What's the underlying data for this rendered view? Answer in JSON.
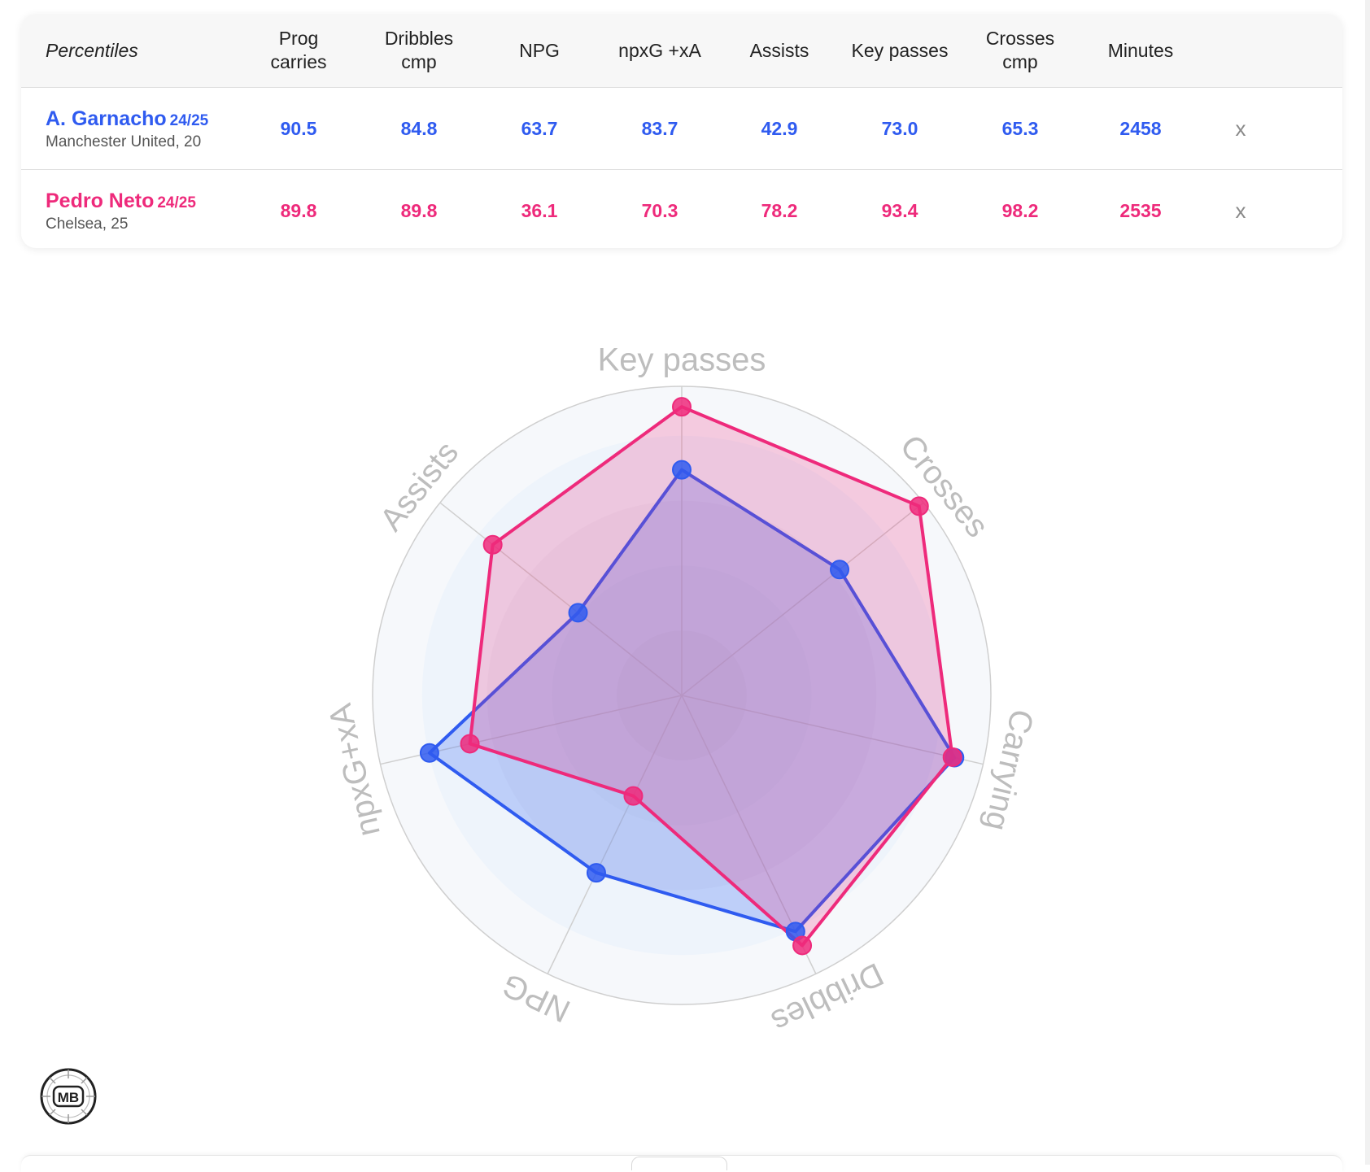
{
  "table": {
    "header_label": "Percentiles",
    "columns": [
      "Prog\ncarries",
      "Dribbles\ncmp",
      "NPG",
      "npxG +xA",
      "Assists",
      "Key passes",
      "Crosses\ncmp",
      "Minutes"
    ],
    "remove_label": "x",
    "rows": [
      {
        "name": "A. Garnacho",
        "season": "24/25",
        "club": "Manchester United, 20",
        "values": [
          "90.5",
          "84.8",
          "63.7",
          "83.7",
          "42.9",
          "73.0",
          "65.3",
          "2458"
        ]
      },
      {
        "name": "Pedro Neto",
        "season": "24/25",
        "club": "Chelsea, 25",
        "values": [
          "89.8",
          "89.8",
          "36.1",
          "70.3",
          "78.2",
          "93.4",
          "98.2",
          "2535"
        ]
      }
    ]
  },
  "colors": {
    "player1": "#2f5bf0",
    "player2": "#ee2a7b"
  },
  "chart_data": {
    "type": "radar",
    "axes": [
      "Key passes",
      "Crosses",
      "Carrying",
      "Dribbles",
      "NPG",
      "npxG+xA",
      "Assists"
    ],
    "range": [
      0,
      100
    ],
    "grid": true,
    "series": [
      {
        "name": "A. Garnacho",
        "values": [
          73.0,
          65.3,
          90.5,
          84.8,
          63.7,
          83.7,
          42.9
        ]
      },
      {
        "name": "Pedro Neto",
        "values": [
          93.4,
          98.2,
          89.8,
          89.8,
          36.1,
          70.3,
          78.2
        ]
      }
    ]
  },
  "logo": {
    "text": "MB"
  }
}
